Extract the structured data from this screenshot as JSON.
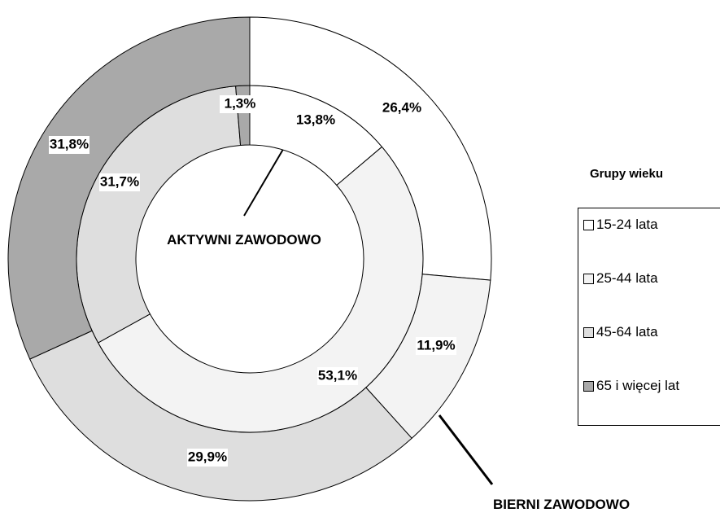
{
  "chart_data": {
    "type": "donut",
    "categories": [
      "15-24 lata",
      "25-44 lata",
      "45-64 lata",
      "65 i więcej lat"
    ],
    "colors": [
      "#ffffff",
      "#f3f3f3",
      "#dedede",
      "#a9a9a9"
    ],
    "legend_title": "Grupy wieku",
    "series": [
      {
        "name": "AKTYWNI ZAWODOWO",
        "values": [
          13.8,
          53.1,
          31.7,
          1.3
        ],
        "value_labels": [
          "13,8%",
          "53,1%",
          "31,7%",
          "1,3%"
        ]
      },
      {
        "name": "BIERNI ZAWODOWO",
        "values": [
          26.4,
          11.9,
          29.9,
          31.8
        ],
        "value_labels": [
          "26,4%",
          "11,9%",
          "29,9%",
          "31,8%"
        ]
      }
    ]
  }
}
